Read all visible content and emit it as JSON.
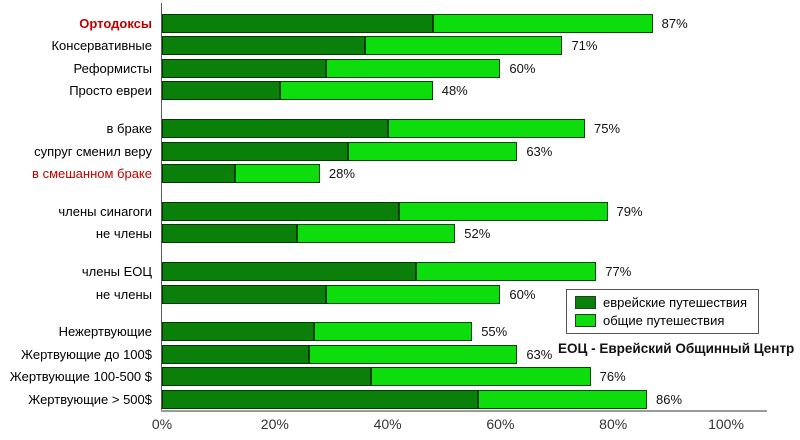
{
  "chart_data": {
    "type": "bar",
    "orientation": "horizontal",
    "stacked": true,
    "title": "",
    "xlabel": "",
    "ylabel": "",
    "xlim": [
      0,
      100
    ],
    "x_ticks": [
      "0%",
      "20%",
      "40%",
      "60%",
      "80%",
      "100%"
    ],
    "grid": false,
    "legend": {
      "position": "bottom-right",
      "entries": [
        {
          "label": "еврейские путешествия",
          "color": "#0a7f0a"
        },
        {
          "label": "общие путешествия",
          "color": "#0ddd0d"
        }
      ]
    },
    "note": "ЕОЦ - Еврейский Общинный Центр",
    "groups": [
      {
        "rows": [
          {
            "label": "Ортодоксы",
            "label_color": "#c00000",
            "label_bold": true,
            "jewish_pct": 48,
            "total_pct": 87
          },
          {
            "label": "Консервативные",
            "label_color": "#000000",
            "label_bold": false,
            "jewish_pct": 36,
            "total_pct": 71
          },
          {
            "label": "Реформисты",
            "label_color": "#000000",
            "label_bold": false,
            "jewish_pct": 29,
            "total_pct": 60
          },
          {
            "label": "Просто евреи",
            "label_color": "#000000",
            "label_bold": false,
            "jewish_pct": 21,
            "total_pct": 48
          }
        ]
      },
      {
        "rows": [
          {
            "label": "в браке",
            "label_color": "#000000",
            "label_bold": false,
            "jewish_pct": 40,
            "total_pct": 75
          },
          {
            "label": "супруг сменил веру",
            "label_color": "#000000",
            "label_bold": false,
            "jewish_pct": 33,
            "total_pct": 63
          },
          {
            "label": "в смешанном браке",
            "label_color": "#c00000",
            "label_bold": false,
            "jewish_pct": 13,
            "total_pct": 28
          }
        ]
      },
      {
        "rows": [
          {
            "label": "члены синагоги",
            "label_color": "#000000",
            "label_bold": false,
            "jewish_pct": 42,
            "total_pct": 79
          },
          {
            "label": "не члены",
            "label_color": "#000000",
            "label_bold": false,
            "jewish_pct": 24,
            "total_pct": 52
          }
        ]
      },
      {
        "rows": [
          {
            "label": "члены ЕОЦ",
            "label_color": "#000000",
            "label_bold": false,
            "jewish_pct": 45,
            "total_pct": 77
          },
          {
            "label": "не члены",
            "label_color": "#000000",
            "label_bold": false,
            "jewish_pct": 29,
            "total_pct": 60
          }
        ]
      },
      {
        "rows": [
          {
            "label": "Нежертвующие",
            "label_color": "#000000",
            "label_bold": false,
            "jewish_pct": 27,
            "total_pct": 55
          },
          {
            "label": "Жертвующие до 100$",
            "label_color": "#000000",
            "label_bold": false,
            "jewish_pct": 26,
            "total_pct": 63
          },
          {
            "label": "Жертвующие 100-500 $",
            "label_color": "#000000",
            "label_bold": false,
            "jewish_pct": 37,
            "total_pct": 76
          },
          {
            "label": "Жертвующие > 500$",
            "label_color": "#000000",
            "label_bold": false,
            "jewish_pct": 56,
            "total_pct": 86
          }
        ]
      }
    ]
  }
}
